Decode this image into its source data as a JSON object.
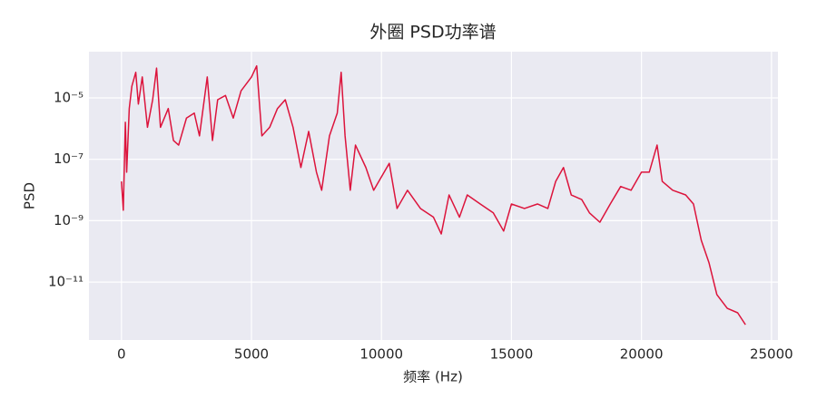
{
  "chart_data": {
    "type": "line",
    "title": "外圈 PSD功率谱",
    "xlabel": "频率 (Hz)",
    "ylabel": "PSD",
    "yscale": "log",
    "grid": true,
    "xlim": [
      -1250,
      25250
    ],
    "xticks": [
      0,
      5000,
      10000,
      15000,
      20000,
      25000
    ],
    "ylim": [
      1.3e-13,
      0.00032
    ],
    "yticks": [
      {
        "value": 1e-05,
        "label": "10⁻⁵"
      },
      {
        "value": 1e-07,
        "label": "10⁻⁷"
      },
      {
        "value": 1e-09,
        "label": "10⁻⁹"
      },
      {
        "value": 1e-11,
        "label": "10⁻¹¹"
      }
    ],
    "x": [
      0,
      70,
      150,
      200,
      300,
      400,
      550,
      650,
      800,
      1000,
      1200,
      1350,
      1500,
      1800,
      2000,
      2200,
      2500,
      2800,
      3000,
      3300,
      3500,
      3700,
      4000,
      4300,
      4600,
      5000,
      5200,
      5400,
      5700,
      6000,
      6300,
      6600,
      6900,
      7200,
      7500,
      7700,
      8000,
      8300,
      8450,
      8600,
      8800,
      9000,
      9400,
      9700,
      10000,
      10300,
      10600,
      11000,
      11500,
      12000,
      12300,
      12600,
      13000,
      13300,
      13800,
      14300,
      14700,
      15000,
      15500,
      16000,
      16400,
      16700,
      17000,
      17300,
      17700,
      18000,
      18400,
      18800,
      19200,
      19600,
      20000,
      20300,
      20600,
      20800,
      21200,
      21700,
      22000,
      22300,
      22600,
      22900,
      23300,
      23700,
      24000
    ],
    "series": [
      {
        "name": "PSD",
        "color": "#dc143c",
        "values": [
          1.9e-08,
          2.2e-09,
          1.6e-06,
          3.8e-08,
          4.5e-06,
          2.4e-05,
          6.8e-05,
          6.3e-06,
          4.8e-05,
          1.1e-06,
          8.7e-06,
          9.3e-05,
          1.1e-06,
          4.5e-06,
          4.1e-07,
          2.9e-07,
          2.2e-06,
          3.2e-06,
          5.8e-07,
          4.8e-05,
          4.1e-07,
          8.7e-06,
          1.2e-05,
          2.2e-06,
          1.7e-05,
          4.8e-05,
          0.00011,
          5.8e-07,
          1.1e-06,
          4.5e-06,
          8.7e-06,
          1.1e-06,
          5.4e-08,
          8.1e-07,
          3.8e-08,
          9.8e-09,
          5.8e-07,
          3.2e-06,
          6.8e-05,
          5.8e-07,
          9.8e-09,
          2.9e-07,
          5.4e-08,
          9.8e-09,
          2.7e-08,
          7.4e-08,
          2.5e-09,
          9.8e-09,
          2.5e-09,
          1.3e-09,
          3.7e-10,
          6.9e-09,
          1.3e-09,
          6.9e-09,
          3.5e-09,
          1.8e-09,
          4.6e-10,
          3.5e-09,
          2.5e-09,
          3.5e-09,
          2.5e-09,
          1.9e-08,
          5.4e-08,
          6.9e-09,
          4.9e-09,
          1.8e-09,
          8.9e-10,
          3.5e-09,
          1.3e-08,
          9.8e-09,
          3.8e-08,
          3.8e-08,
          2.9e-07,
          1.9e-08,
          9.8e-09,
          6.9e-09,
          3.5e-09,
          2.3e-10,
          4.2e-11,
          3.9e-12,
          1.4e-12,
          1e-12,
          4.1e-13
        ]
      }
    ]
  }
}
